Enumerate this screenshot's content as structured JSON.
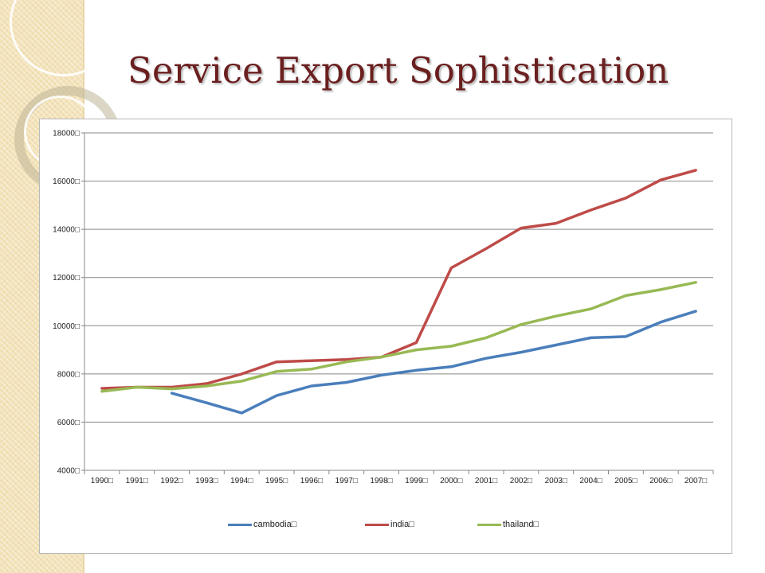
{
  "slide": {
    "title": "Service Export Sophistication"
  },
  "colors": {
    "title": "#6b1f1f",
    "cambodia": "#4a7ebb",
    "india": "#be4b48",
    "thailand": "#98b954"
  },
  "chart_data": {
    "type": "line",
    "title": "",
    "xlabel": "",
    "ylabel": "",
    "ylim": [
      4000,
      18000
    ],
    "y_ticks": [
      4000,
      6000,
      8000,
      10000,
      12000,
      14000,
      16000,
      18000
    ],
    "y_tick_labels": [
      "4000□",
      "6000□",
      "8000□",
      "10000□",
      "12000□",
      "14000□",
      "16000□",
      "18000□"
    ],
    "categories": [
      "1990",
      "1991",
      "1992",
      "1993",
      "1994",
      "1995",
      "1996",
      "1997",
      "1998",
      "1999",
      "2000",
      "2001",
      "2002",
      "2003",
      "2004",
      "2005",
      "2006",
      "2007"
    ],
    "category_labels": [
      "1990□",
      "1991□",
      "1992□",
      "1993□",
      "1994□",
      "1995□",
      "1996□",
      "1997□",
      "1998□",
      "1999□",
      "2000□",
      "2001□",
      "2002□",
      "2003□",
      "2004□",
      "2005□",
      "2006□",
      "2007□"
    ],
    "grid": true,
    "legend_position": "bottom",
    "series": [
      {
        "name": "cambodia□",
        "key": "cambodia",
        "values": [
          null,
          null,
          7200,
          6800,
          6380,
          7100,
          7500,
          7650,
          7950,
          8150,
          8300,
          8650,
          8900,
          9200,
          9500,
          9550,
          10150,
          10600
        ]
      },
      {
        "name": "india□",
        "key": "india",
        "values": [
          7400,
          7450,
          7450,
          7600,
          8000,
          8500,
          8550,
          8600,
          8700,
          9300,
          12400,
          13200,
          14050,
          14250,
          14800,
          15300,
          16050,
          16450
        ]
      },
      {
        "name": "thailand□",
        "key": "thailand",
        "values": [
          7280,
          7450,
          7380,
          7500,
          7700,
          8100,
          8200,
          8500,
          8700,
          9000,
          9150,
          9500,
          10050,
          10400,
          10700,
          11250,
          11500,
          11800
        ]
      }
    ]
  }
}
